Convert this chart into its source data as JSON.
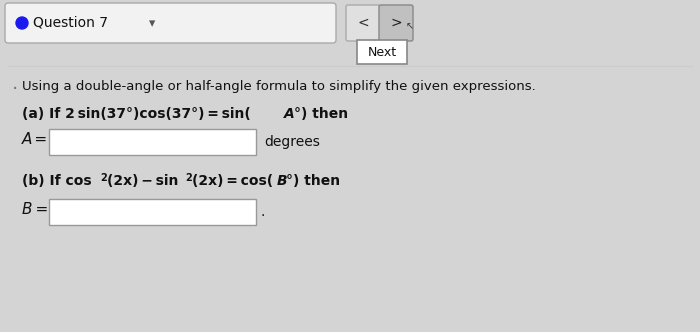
{
  "bg_color": "#d4d4d4",
  "header_box_color": "#f2f2f2",
  "header_box_edge": "#aaaaaa",
  "question_label": "Question 7",
  "next_label": "Next",
  "instruction": "Using a double-angle or half-angle formula to simplify the given expressions.",
  "part_a_suffix": "degrees",
  "part_b_suffix": ".",
  "input_box_color": "#ffffff",
  "input_box_border": "#999999",
  "text_color": "#111111",
  "dot_color": "#1a1aee",
  "nav_box_color": "#e0e0e0",
  "nav_box_active": "#c0c0c0",
  "next_box_color": "#ffffff",
  "next_box_edge": "#888888",
  "separator_color": "#cccccc"
}
